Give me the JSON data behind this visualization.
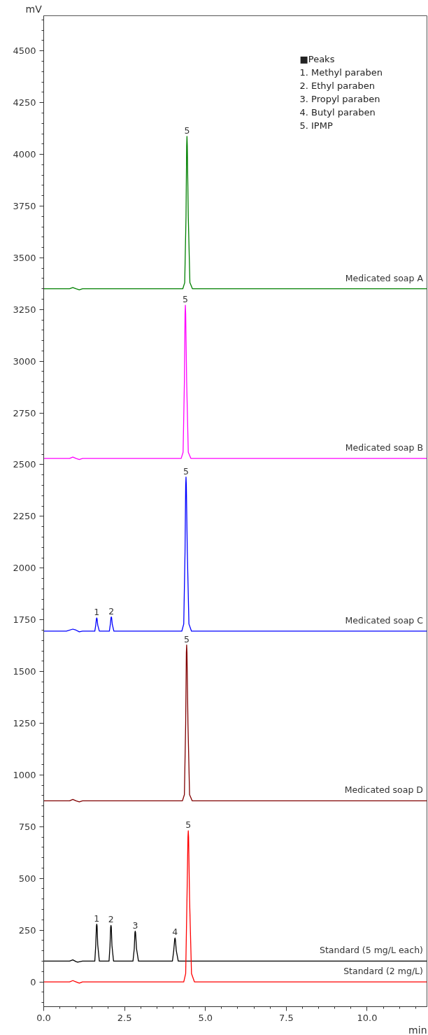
{
  "chart_data": {
    "type": "line",
    "xlabel": "min",
    "ylabel": "mV",
    "xlim": [
      0,
      11.85
    ],
    "ylim": [
      -120,
      4670
    ],
    "xticks": [
      {
        "value": 0,
        "label": "0.0"
      },
      2.5,
      {
        "value": 5,
        "label": "5.0"
      },
      7.5,
      {
        "value": 10,
        "label": "10.0"
      }
    ],
    "yticks": [
      0,
      250,
      500,
      750,
      1000,
      1250,
      1500,
      1750,
      2000,
      2250,
      2500,
      2750,
      3000,
      3250,
      3500,
      3750,
      4000,
      4250,
      4500
    ],
    "grid": false,
    "marker": "none",
    "line_style": "solid",
    "series": [
      {
        "name": "Medicated soap A",
        "color": "#008000",
        "x": [
          0,
          0.8,
          0.9,
          1.0,
          1.1,
          1.2,
          4.3,
          4.36,
          4.4,
          4.42,
          4.43,
          4.44,
          4.47,
          4.52,
          4.6,
          11.85
        ],
        "values": [
          3350,
          3350,
          3356,
          3350,
          3345,
          3350,
          3350,
          3380,
          3700,
          4040,
          4087,
          4040,
          3700,
          3380,
          3350,
          3350
        ]
      },
      {
        "name": "Medicated soap B",
        "color": "#ff00ff",
        "x": [
          0,
          0.8,
          0.9,
          1.0,
          1.1,
          1.2,
          4.25,
          4.31,
          4.35,
          4.37,
          4.38,
          4.39,
          4.42,
          4.47,
          4.55,
          11.85
        ],
        "values": [
          2530,
          2530,
          2537,
          2530,
          2525,
          2530,
          2530,
          2560,
          2900,
          3230,
          3271,
          3230,
          2900,
          2560,
          2530,
          2530
        ]
      },
      {
        "name": "Medicated soap C",
        "color": "#0000ff",
        "x": [
          0,
          0.7,
          0.9,
          1.0,
          1.1,
          1.2,
          1.58,
          1.61,
          1.63,
          1.64,
          1.65,
          1.67,
          1.72,
          2.03,
          2.06,
          2.08,
          2.09,
          2.1,
          2.12,
          2.17,
          4.27,
          4.33,
          4.37,
          4.39,
          4.4,
          4.41,
          4.44,
          4.49,
          4.57,
          11.85
        ],
        "values": [
          1695,
          1695,
          1705,
          1700,
          1692,
          1695,
          1695,
          1725,
          1755,
          1759,
          1755,
          1725,
          1695,
          1695,
          1728,
          1760,
          1764,
          1760,
          1728,
          1695,
          1695,
          1730,
          2080,
          2400,
          2440,
          2400,
          2080,
          1730,
          1695,
          1695
        ]
      },
      {
        "name": "Medicated soap D",
        "color": "#800000",
        "x": [
          0,
          0.8,
          0.9,
          1.0,
          1.1,
          1.2,
          4.29,
          4.35,
          4.39,
          4.41,
          4.42,
          4.43,
          4.46,
          4.51,
          4.59,
          11.85
        ],
        "values": [
          875,
          875,
          882,
          875,
          870,
          875,
          875,
          905,
          1250,
          1590,
          1628,
          1590,
          1250,
          905,
          875,
          875
        ]
      },
      {
        "name": "Standard (5 mg/L each)",
        "color": "#000000",
        "x": [
          0,
          0.8,
          0.9,
          1.0,
          1.05,
          1.2,
          1.58,
          1.61,
          1.63,
          1.64,
          1.65,
          1.67,
          1.72,
          2.02,
          2.05,
          2.07,
          2.08,
          2.09,
          2.11,
          2.16,
          2.76,
          2.8,
          2.82,
          2.83,
          2.84,
          2.87,
          2.93,
          3.98,
          4.02,
          4.05,
          4.06,
          4.07,
          4.1,
          4.16,
          11.85
        ],
        "values": [
          100,
          100,
          106,
          98,
          95,
          100,
          100,
          180,
          270,
          279,
          270,
          180,
          100,
          100,
          175,
          264,
          273,
          264,
          175,
          100,
          100,
          160,
          238,
          245,
          238,
          160,
          100,
          100,
          150,
          206,
          212,
          206,
          150,
          100,
          100
        ]
      },
      {
        "name": "Standard (2 mg/L)",
        "color": "#ff0000",
        "x": [
          0,
          0.8,
          0.9,
          1.0,
          1.1,
          1.2,
          4.33,
          4.39,
          4.43,
          4.46,
          4.47,
          4.48,
          4.51,
          4.57,
          4.66,
          11.85
        ],
        "values": [
          0,
          0,
          6,
          0,
          -6,
          0,
          0,
          40,
          400,
          700,
          730,
          700,
          400,
          40,
          0,
          0
        ]
      }
    ],
    "annotations": [
      "■Peaks",
      "1. Methyl paraben",
      "2. Ethyl paraben",
      "3. Propyl paraben",
      "4. Butyl paraben",
      "5. IPMP",
      {
        "text": "5",
        "x": 4.43,
        "y": 4087
      },
      {
        "text": "5",
        "x": 4.38,
        "y": 3271
      },
      {
        "text": "1",
        "x": 1.64,
        "y": 1759
      },
      {
        "text": "2",
        "x": 2.09,
        "y": 1764
      },
      {
        "text": "5",
        "x": 4.4,
        "y": 2440
      },
      {
        "text": "5",
        "x": 4.42,
        "y": 1628
      },
      {
        "text": "1",
        "x": 1.64,
        "y": 279
      },
      {
        "text": "2",
        "x": 2.08,
        "y": 273
      },
      {
        "text": "3",
        "x": 2.83,
        "y": 245
      },
      {
        "text": "4",
        "x": 4.06,
        "y": 212
      },
      {
        "text": "5",
        "x": 4.47,
        "y": 730
      }
    ]
  }
}
